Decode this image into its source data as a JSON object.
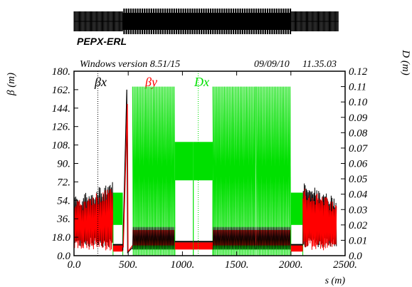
{
  "header": {
    "lattice_name": "PEPX-ERL",
    "version": "Windows version 8.51/15",
    "date": "09/09/10",
    "time": "11.35.03"
  },
  "colors": {
    "beta_x": "#000000",
    "beta_y": "#ff0000",
    "dispersion": "#00e000",
    "axes": "#000000"
  },
  "chart_data": {
    "type": "line",
    "xlabel": "s (m)",
    "ylabel_left": "β (m)",
    "ylabel_right": "D (m)",
    "xlim": [
      0,
      2500
    ],
    "ylim_left": [
      0,
      180
    ],
    "ylim_right": [
      0,
      0.12
    ],
    "x_ticks": [
      "0.0",
      "500.",
      "1000.",
      "1500.",
      "2000.",
      "2500."
    ],
    "y_left_ticks": [
      "0.0",
      "18.0",
      "36.",
      "54.",
      "72.",
      "90.",
      "108.",
      "126.",
      "144.",
      "162.",
      "180."
    ],
    "y_right_ticks": [
      "0.0",
      "0.01",
      "0.02",
      "0.03",
      "0.04",
      "0.05",
      "0.06",
      "0.07",
      "0.08",
      "0.09",
      "0.10",
      "0.11",
      "0.12"
    ],
    "series": [
      {
        "name": "βx",
        "color": "#000000",
        "axis": "left"
      },
      {
        "name": "βy",
        "color": "#ff0000",
        "axis": "left"
      },
      {
        "name": "Dx",
        "color": "#00e000",
        "axis": "right"
      }
    ],
    "regions": [
      {
        "s": [
          0,
          360
        ],
        "kind": "oscillating",
        "betax_range": [
          8,
          58
        ],
        "betay_range": [
          5,
          52
        ],
        "dx": 0,
        "rise_to": 72
      },
      {
        "s": [
          360,
          450
        ],
        "kind": "dispersion_block",
        "dx_range": [
          0.02,
          0.041
        ],
        "beta_level": [
          4,
          10
        ]
      },
      {
        "s": [
          450,
          540
        ],
        "kind": "peak",
        "betax_peak": 162,
        "betay_peak": 148
      },
      {
        "s": [
          540,
          930
        ],
        "kind": "arc",
        "dx_max": 0.11,
        "beta_range": [
          0,
          170
        ],
        "beta_floor_band": [
          10,
          25
        ]
      },
      {
        "s": [
          930,
          1100
        ],
        "kind": "dispersion_block",
        "dx_range": [
          0.049,
          0.074
        ],
        "beta_level": [
          6,
          13
        ]
      },
      {
        "s": [
          1100,
          1280
        ],
        "kind": "dispersion_block",
        "dx_range": [
          0.049,
          0.074
        ],
        "beta_level": [
          6,
          13
        ]
      },
      {
        "s": [
          1280,
          1680
        ],
        "kind": "arc",
        "dx_max": 0.11,
        "beta_range": [
          0,
          170
        ],
        "beta_floor_band": [
          10,
          25
        ]
      },
      {
        "s": [
          1680,
          2000
        ],
        "kind": "arc",
        "dx_max": 0.11,
        "beta_range": [
          0,
          170
        ],
        "beta_floor_band": [
          10,
          25
        ]
      },
      {
        "s": [
          2000,
          2110
        ],
        "kind": "dispersion_block",
        "dx_range": [
          0.02,
          0.041
        ],
        "beta_level": [
          4,
          10
        ]
      },
      {
        "s": [
          2110,
          2420
        ],
        "kind": "oscillating",
        "betax_range": [
          8,
          58
        ],
        "betay_range": [
          5,
          52
        ],
        "dx": 0,
        "rise_to": 72
      }
    ],
    "marker_lines_s": [
      220,
      1145
    ]
  }
}
